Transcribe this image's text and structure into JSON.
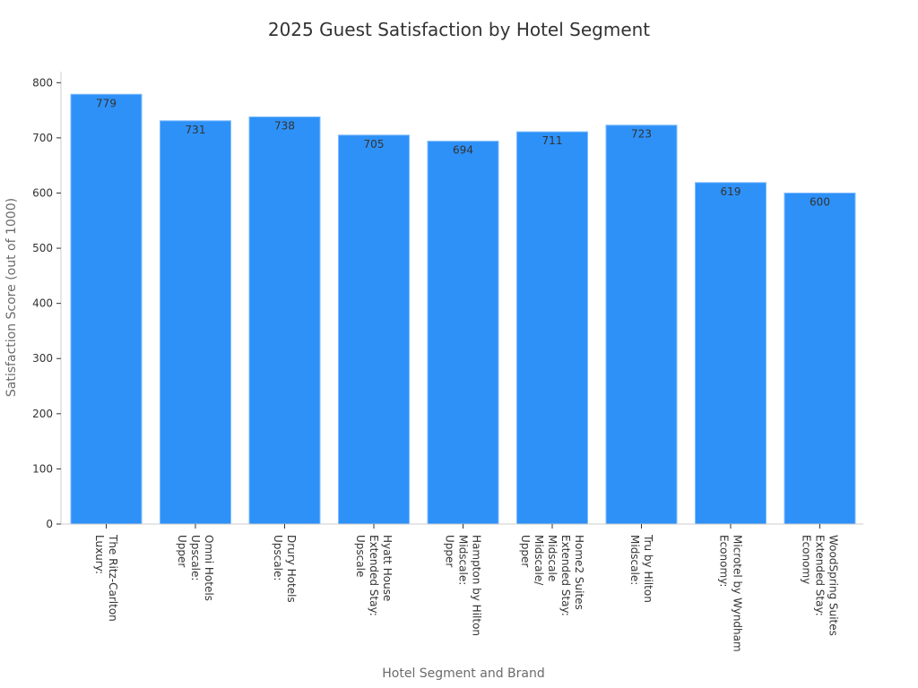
{
  "chart_data": {
    "type": "bar",
    "title": "2025 Guest Satisfaction by Hotel Segment",
    "xlabel": "Hotel Segment and Brand",
    "ylabel": "Satisfaction Score (out of 1000)",
    "ylim": [
      0,
      820
    ],
    "yticks": [
      0,
      100,
      200,
      300,
      400,
      500,
      600,
      700,
      800
    ],
    "grid": false,
    "categories": [
      [
        "Luxury:",
        "The Ritz-Carlton"
      ],
      [
        "Upper",
        "Upscale:",
        "Omni Hotels"
      ],
      [
        "Upscale:",
        "Drury Hotels"
      ],
      [
        "Upscale",
        "Extended Stay:",
        "Hyatt House"
      ],
      [
        "Upper",
        "Midscale:",
        "Hampton by Hilton"
      ],
      [
        "Upper",
        "Midscale/",
        "Midscale",
        "Extended Stay:",
        "Home2 Suites"
      ],
      [
        "Midscale:",
        "Tru by Hilton"
      ],
      [
        "Economy:",
        "Microtel by Wyndham"
      ],
      [
        "Economy",
        "Extended Stay:",
        "WoodSpring Suites"
      ]
    ],
    "values": [
      779,
      731,
      738,
      705,
      694,
      711,
      723,
      619,
      600
    ],
    "data_labels": [
      "779",
      "731",
      "738",
      "705",
      "694",
      "711",
      "723",
      "619",
      "600"
    ],
    "colors": {
      "bar": "#2e91f8",
      "bar_edge": "#7fbcff"
    }
  }
}
